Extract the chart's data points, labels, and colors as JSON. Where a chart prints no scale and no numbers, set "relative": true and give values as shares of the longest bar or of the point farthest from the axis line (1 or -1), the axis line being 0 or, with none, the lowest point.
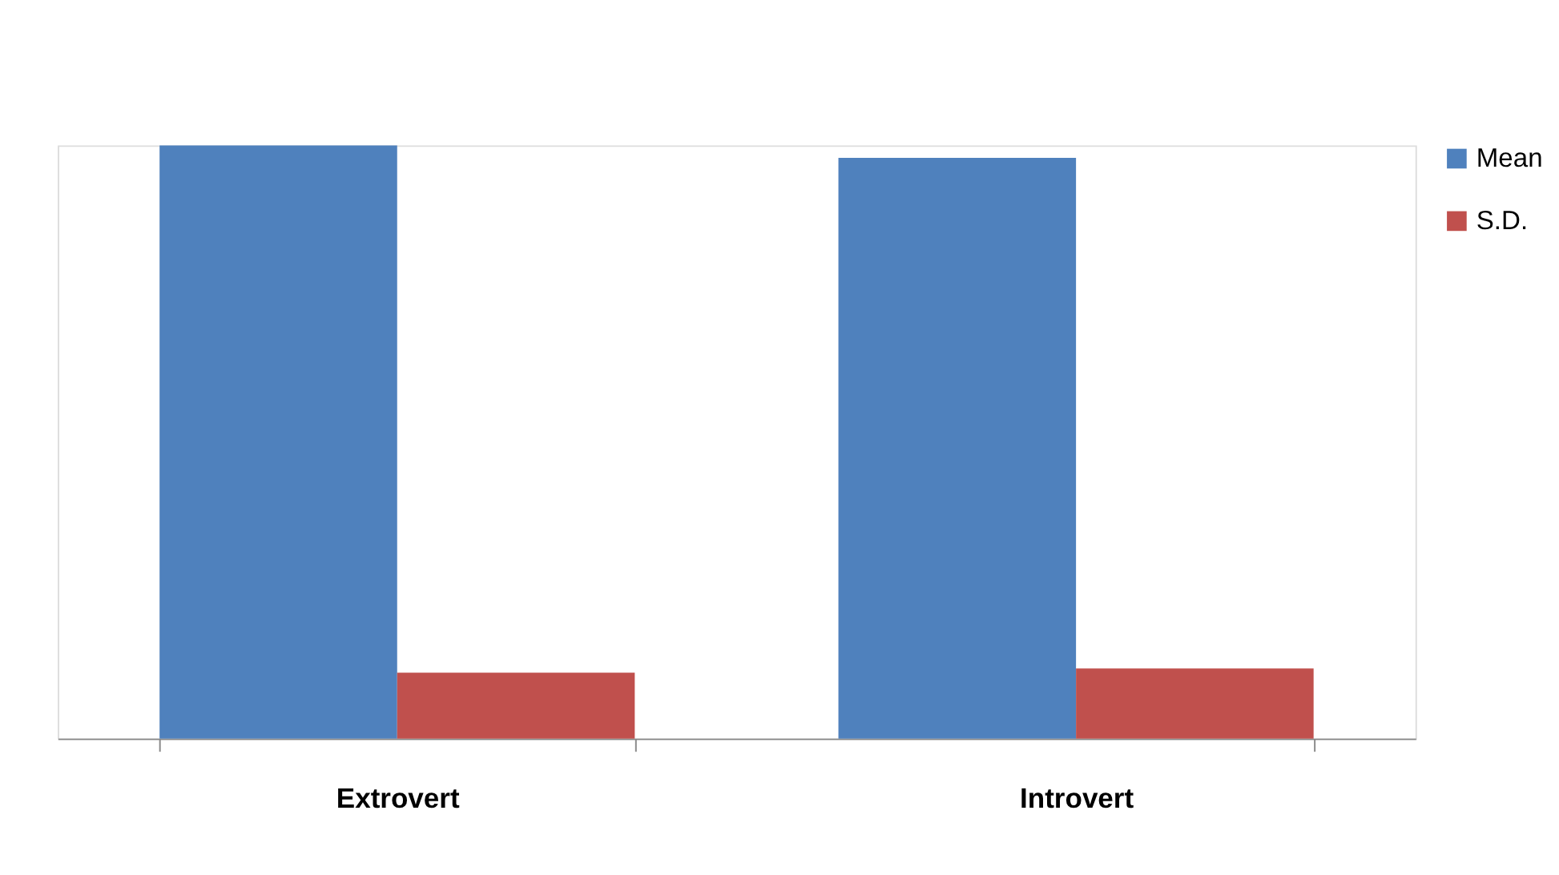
{
  "chart_data": {
    "type": "bar",
    "relative": true,
    "categories": [
      "Extrovert",
      "Introvert"
    ],
    "series": [
      {
        "name": "Mean",
        "color": "#4f81bd",
        "values": [
          1,
          0.979
        ]
      },
      {
        "name": "S.D.",
        "color": "#c0504d",
        "values": [
          0.111,
          0.118
        ]
      }
    ],
    "legend": "right",
    "grid": false
  }
}
